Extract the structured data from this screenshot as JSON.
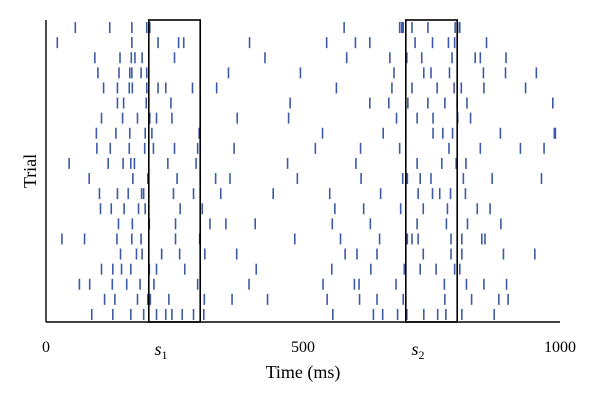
{
  "chart_data": {
    "type": "raster",
    "xlabel": "Time (ms)",
    "ylabel": "Trial",
    "xlim": [
      0,
      1000
    ],
    "x_ticks": [
      {
        "value": 0,
        "label": "0"
      },
      {
        "value": 500,
        "label": "500"
      },
      {
        "value": 1000,
        "label": "1000"
      }
    ],
    "spike_color": "#3d5aa6",
    "windows": [
      {
        "label": "s",
        "subscript": "1",
        "start": 200,
        "end": 300
      },
      {
        "label": "s",
        "subscript": "2",
        "start": 700,
        "end": 800
      }
    ],
    "trials": [
      [
        57,
        124,
        167,
        196,
        202,
        580,
        688,
        692,
        695,
        712,
        743,
        796,
        801,
        805
      ],
      [
        22,
        167,
        218,
        258,
        268,
        396,
        546,
        602,
        630,
        718,
        752,
        783,
        795,
        857
      ],
      [
        95,
        144,
        166,
        173,
        187,
        250,
        426,
        585,
        669,
        702,
        731,
        790,
        835,
        845,
        895
      ],
      [
        101,
        142,
        163,
        167,
        185,
        196,
        355,
        495,
        677,
        735,
        749,
        785,
        851,
        894,
        954
      ],
      [
        112,
        139,
        162,
        168,
        196,
        218,
        233,
        285,
        332,
        565,
        673,
        712,
        761,
        794,
        808,
        852,
        933
      ],
      [
        139,
        151,
        195,
        243,
        475,
        630,
        667,
        704,
        743,
        776,
        800,
        819,
        986
      ],
      [
        108,
        149,
        178,
        202,
        215,
        245,
        372,
        472,
        682,
        722,
        753,
        801,
        826
      ],
      [
        98,
        136,
        163,
        193,
        206,
        298,
        538,
        656,
        753,
        772,
        791,
        884,
        989,
        991
      ],
      [
        99,
        125,
        162,
        192,
        209,
        250,
        295,
        366,
        524,
        612,
        688,
        784,
        845,
        923,
        969
      ],
      [
        45,
        121,
        150,
        165,
        172,
        237,
        292,
        470,
        603,
        722,
        770,
        798,
        817
      ],
      [
        84,
        169,
        198,
        255,
        330,
        358,
        489,
        613,
        694,
        703,
        728,
        749,
        812,
        868,
        964
      ],
      [
        104,
        139,
        160,
        186,
        190,
        248,
        287,
        340,
        442,
        552,
        651,
        724,
        752,
        766,
        787,
        816
      ],
      [
        106,
        127,
        152,
        180,
        193,
        261,
        304,
        562,
        618,
        690,
        734,
        781,
        839,
        864
      ],
      [
        141,
        168,
        201,
        252,
        319,
        350,
        407,
        557,
        631,
        722,
        779,
        820,
        885
      ],
      [
        31,
        75,
        138,
        167,
        185,
        252,
        299,
        484,
        573,
        649,
        703,
        712,
        724,
        788,
        809,
        848,
        854
      ],
      [
        145,
        176,
        187,
        225,
        260,
        309,
        371,
        582,
        605,
        644,
        734,
        788,
        809,
        890,
        951
      ],
      [
        108,
        130,
        147,
        165,
        201,
        215,
        270,
        409,
        556,
        632,
        697,
        728,
        759,
        795,
        805
      ],
      [
        65,
        85,
        129,
        157,
        183,
        210,
        295,
        395,
        539,
        600,
        609,
        681,
        775,
        818,
        852,
        896
      ],
      [
        114,
        134,
        178,
        198,
        203,
        239,
        308,
        362,
        431,
        547,
        610,
        644,
        695,
        776,
        828,
        881,
        899
      ],
      [
        89,
        130,
        165,
        190,
        215,
        233,
        245,
        265,
        287,
        307,
        558,
        637,
        655,
        684,
        702,
        735,
        762,
        778,
        809,
        872
      ]
    ]
  }
}
